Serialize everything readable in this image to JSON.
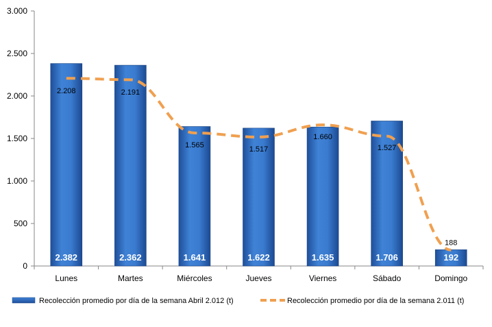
{
  "chart_data": {
    "type": "bar",
    "categories": [
      "Lunes",
      "Martes",
      "Miércoles",
      "Jueves",
      "Viernes",
      "Sábado",
      "Domingo"
    ],
    "series": [
      {
        "name": "Recolección promedio por día de la semana Abril 2.012 (t)",
        "type": "bar",
        "values": [
          2382,
          2362,
          1641,
          1622,
          1635,
          1706,
          192
        ],
        "labels": [
          "2.382",
          "2.362",
          "1.641",
          "1.622",
          "1.635",
          "1.706",
          "192"
        ],
        "color": "#2F6FC0"
      },
      {
        "name": "Recolección promedio por día de la semana 2.011 (t)",
        "type": "line",
        "style": "dashed",
        "values": [
          2208,
          2191,
          1565,
          1517,
          1660,
          1527,
          188
        ],
        "labels": [
          "2.208",
          "2.191",
          "1.565",
          "1.517",
          "1.660",
          "1.527",
          "188"
        ],
        "color": "#F0A050"
      }
    ],
    "ylim": [
      0,
      3000
    ],
    "yticks": [
      0,
      500,
      1000,
      1500,
      2000,
      2500,
      3000
    ],
    "ytick_labels": [
      "0",
      "500",
      "1.000",
      "1.500",
      "2.000",
      "2.500",
      "3.000"
    ],
    "grid": false,
    "legend": "bottom"
  }
}
